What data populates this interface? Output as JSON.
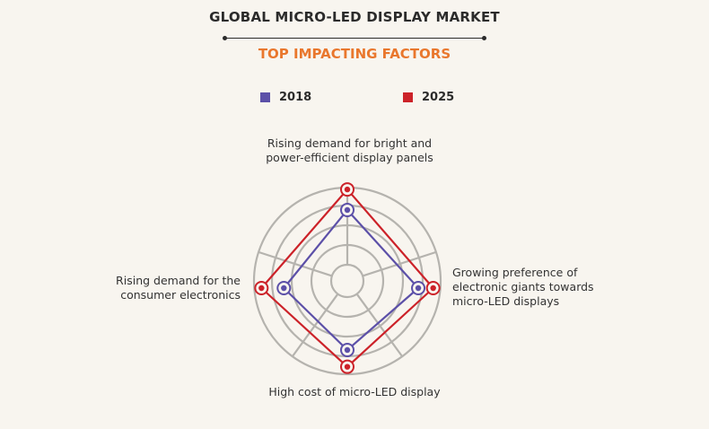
{
  "header": {
    "title": "GLOBAL MICRO-LED DISPLAY MARKET",
    "subtitle": "TOP IMPACTING FACTORS"
  },
  "colors": {
    "title": "#2b2b2b",
    "subtitle": "#e9772d",
    "grid": "#b5b3ae",
    "series_2018": "#5c50a8",
    "series_2025": "#cc2229",
    "background": "#f8f5ef"
  },
  "chart_data": {
    "type": "radar",
    "title": "GLOBAL MICRO-LED DISPLAY MARKET",
    "subtitle": "TOP IMPACTING FACTORS",
    "legend_position": "top",
    "grid": true,
    "rings": 5,
    "axes": [
      "Rising demand for bright and power-efficient display panels",
      "Growing preference of electronic giants towards micro-LED displays",
      "High cost of micro-LED display",
      "Rising demand for the consumer electronics"
    ],
    "axis_label_lines": [
      [
        "Rising demand for bright and",
        "power-efficient display panels"
      ],
      [
        "Growing preference of",
        "electronic giants towards",
        "micro-LED displays"
      ],
      [
        "High cost of micro-LED display"
      ],
      [
        "Rising demand for the",
        "consumer electronics"
      ]
    ],
    "range": [
      0,
      5
    ],
    "series": [
      {
        "name": "2018",
        "color": "#5c50a8",
        "values": [
          3.8,
          3.8,
          3.7,
          3.4
        ]
      },
      {
        "name": "2025",
        "color": "#cc2229",
        "values": [
          4.9,
          4.6,
          4.6,
          4.6
        ]
      }
    ]
  }
}
